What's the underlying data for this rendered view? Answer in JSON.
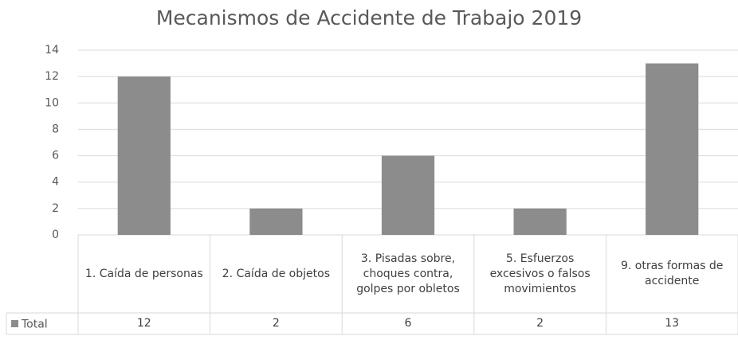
{
  "chart_data": {
    "type": "bar",
    "title": "Mecanismos de Accidente de Trabajo 2019",
    "categories": [
      "1. Caída de personas",
      "2. Caída de objetos",
      "3. Pisadas sobre, choques contra, golpes por obletos",
      "5. Esfuerzos excesivos o falsos movimientos",
      "9. otras formas de accidente"
    ],
    "series": [
      {
        "name": "Total",
        "color": "#8c8c8c",
        "values": [
          12,
          2,
          6,
          2,
          13
        ]
      }
    ],
    "ylim": [
      0,
      14
    ],
    "yticks": [
      0,
      2,
      4,
      6,
      8,
      10,
      12,
      14
    ],
    "grid": true,
    "data_table": true
  }
}
